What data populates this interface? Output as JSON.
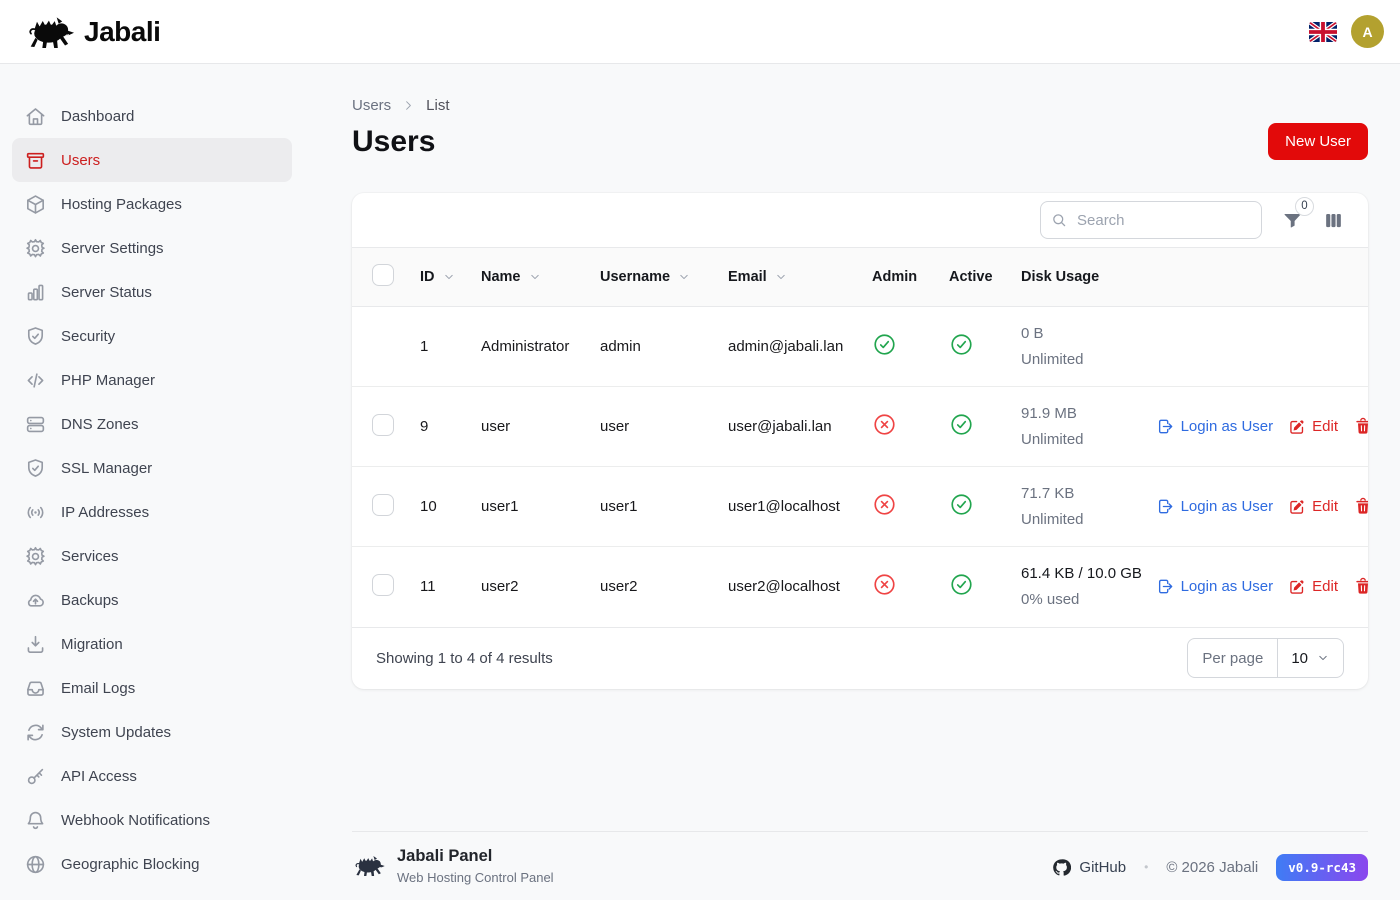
{
  "brand": {
    "name": "Jabali"
  },
  "header": {
    "avatar_initial": "A"
  },
  "sidebar": {
    "items": [
      {
        "label": "Dashboard",
        "icon": "home",
        "active": false
      },
      {
        "label": "Users",
        "icon": "archive",
        "active": true
      },
      {
        "label": "Hosting Packages",
        "icon": "package",
        "active": false
      },
      {
        "label": "Server Settings",
        "icon": "gear",
        "active": false
      },
      {
        "label": "Server Status",
        "icon": "chart-bars",
        "active": false
      },
      {
        "label": "Security",
        "icon": "shield-check",
        "active": false
      },
      {
        "label": "PHP Manager",
        "icon": "code",
        "active": false
      },
      {
        "label": "DNS Zones",
        "icon": "server-stack",
        "active": false
      },
      {
        "label": "SSL Manager",
        "icon": "shield-check",
        "active": false
      },
      {
        "label": "IP Addresses",
        "icon": "signal",
        "active": false
      },
      {
        "label": "Services",
        "icon": "gear",
        "active": false
      },
      {
        "label": "Backups",
        "icon": "cloud-upload",
        "active": false
      },
      {
        "label": "Migration",
        "icon": "download-tray",
        "active": false
      },
      {
        "label": "Email Logs",
        "icon": "inbox",
        "active": false
      },
      {
        "label": "System Updates",
        "icon": "arrows-refresh",
        "active": false
      },
      {
        "label": "API Access",
        "icon": "key",
        "active": false
      },
      {
        "label": "Webhook Notifications",
        "icon": "bell",
        "active": false
      },
      {
        "label": "Geographic Blocking",
        "icon": "globe",
        "active": false
      }
    ]
  },
  "breadcrumb": {
    "parent": "Users",
    "current": "List"
  },
  "page": {
    "title": "Users",
    "new_user_button": "New User"
  },
  "toolbar": {
    "search_placeholder": "Search",
    "filter_count": "0"
  },
  "table": {
    "columns": [
      {
        "label": "ID",
        "sortable": true
      },
      {
        "label": "Name",
        "sortable": true
      },
      {
        "label": "Username",
        "sortable": true
      },
      {
        "label": "Email",
        "sortable": true
      },
      {
        "label": "Admin",
        "sortable": false
      },
      {
        "label": "Active",
        "sortable": false
      },
      {
        "label": "Disk Usage",
        "sortable": false
      }
    ],
    "action_labels": {
      "login_as_user": "Login as User",
      "edit": "Edit"
    },
    "rows": [
      {
        "id": "1",
        "name": "Administrator",
        "username": "admin",
        "email": "admin@jabali.lan",
        "admin": true,
        "active": true,
        "disk_usage": "0 B",
        "disk_quota": "Unlimited",
        "disk_has_quota": false,
        "selectable": false,
        "has_actions": false
      },
      {
        "id": "9",
        "name": "user",
        "username": "user",
        "email": "user@jabali.lan",
        "admin": false,
        "active": true,
        "disk_usage": "91.9 MB",
        "disk_quota": "Unlimited",
        "disk_has_quota": false,
        "selectable": true,
        "has_actions": true
      },
      {
        "id": "10",
        "name": "user1",
        "username": "user1",
        "email": "user1@localhost",
        "admin": false,
        "active": true,
        "disk_usage": "71.7 KB",
        "disk_quota": "Unlimited",
        "disk_has_quota": false,
        "selectable": true,
        "has_actions": true
      },
      {
        "id": "11",
        "name": "user2",
        "username": "user2",
        "email": "user2@localhost",
        "admin": false,
        "active": true,
        "disk_usage": "61.4 KB / 10.0 GB",
        "disk_quota": "0% used",
        "disk_has_quota": true,
        "selectable": true,
        "has_actions": true
      }
    ]
  },
  "pagination": {
    "summary": "Showing 1 to 4 of 4 results",
    "per_page_label": "Per page",
    "per_page_value": "10"
  },
  "footer": {
    "panel_name": "Jabali Panel",
    "tagline": "Web Hosting Control Panel",
    "github_label": "GitHub",
    "separator": "•",
    "copyright": "© 2026 Jabali",
    "version": "v0.9-rc43"
  },
  "colors": {
    "accent_red": "#cc1f1f",
    "button_red": "#e20a0a",
    "link_blue": "#2f6be0",
    "success_green": "#21a54e",
    "danger_red": "#ef4444",
    "avatar_gold": "#b3a12f",
    "badge_gradient_start": "#3f7cf5",
    "badge_gradient_end": "#8b47ee"
  }
}
